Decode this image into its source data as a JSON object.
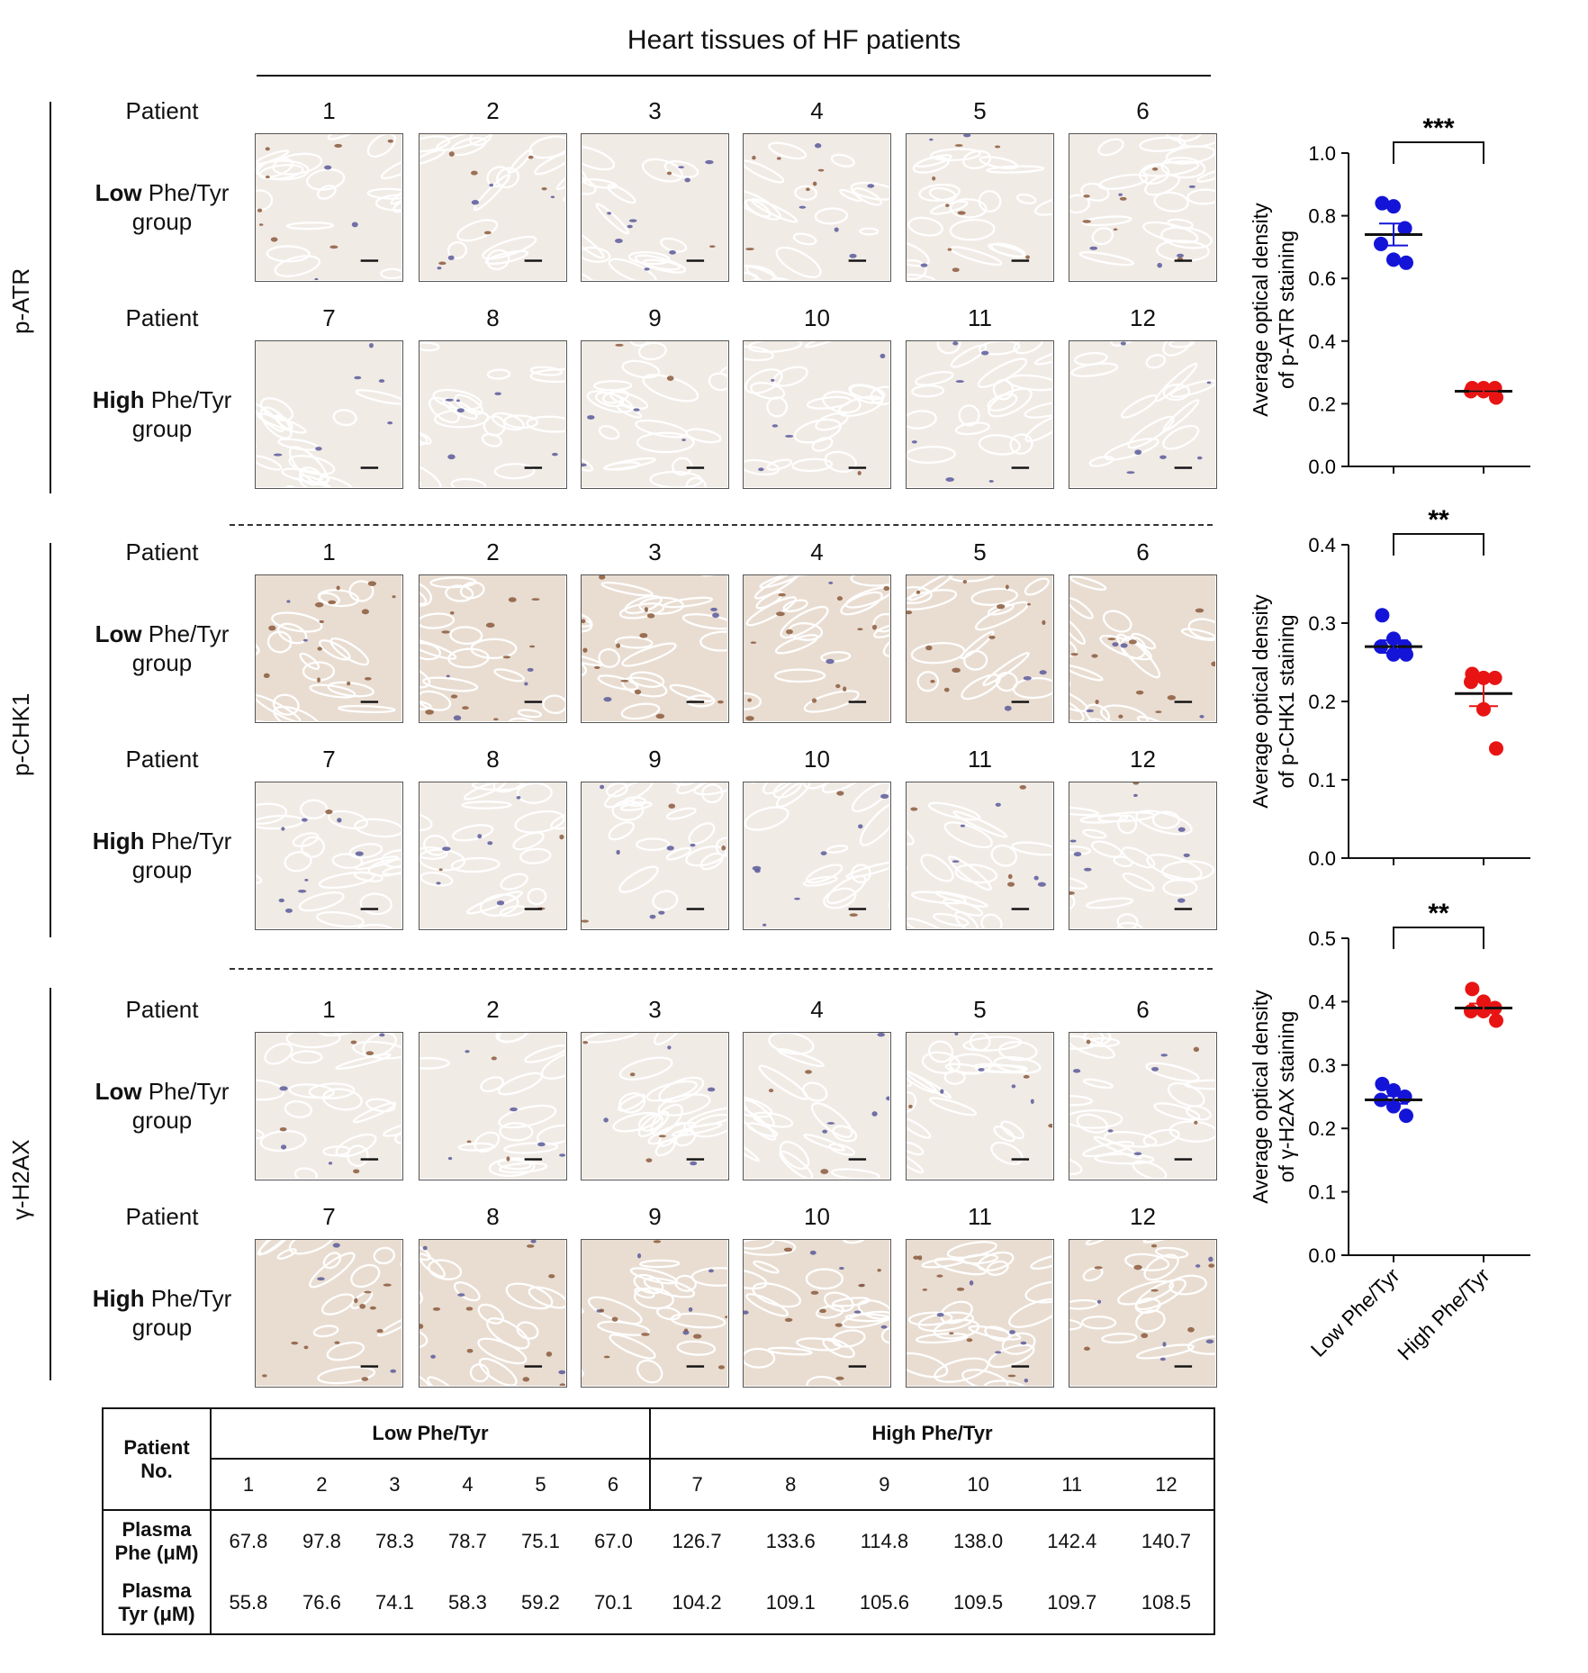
{
  "figure_title": "Heart tissues of HF patients",
  "labels": {
    "patient": "Patient",
    "low_bold": "Low",
    "high_bold": "High",
    "phe_tyr": " Phe/Tyr",
    "group": "group"
  },
  "panels": [
    {
      "name": "p-ATR",
      "low_patients": [
        "1",
        "2",
        "3",
        "4",
        "5",
        "6"
      ],
      "high_patients": [
        "7",
        "8",
        "9",
        "10",
        "11",
        "12"
      ]
    },
    {
      "name": "p-CHK1",
      "low_patients": [
        "1",
        "2",
        "3",
        "4",
        "5",
        "6"
      ],
      "high_patients": [
        "7",
        "8",
        "9",
        "10",
        "11",
        "12"
      ]
    },
    {
      "name": "γ-H2AX",
      "low_patients": [
        "1",
        "2",
        "3",
        "4",
        "5",
        "6"
      ],
      "high_patients": [
        "7",
        "8",
        "9",
        "10",
        "11",
        "12"
      ]
    }
  ],
  "colors": {
    "low": "#1414d9",
    "high": "#e81414",
    "stain_brown": "#8b5a3c",
    "stain_blue": "#5a5a9a"
  },
  "chart_data": [
    {
      "type": "scatter",
      "ylabel": [
        "Average optical density",
        "of p-ATR staining"
      ],
      "ylim": [
        0,
        1.0
      ],
      "yticks": [
        "0.0",
        "0.2",
        "0.4",
        "0.6",
        "0.8",
        "1.0"
      ],
      "categories": [
        "Low Phe/Tyr",
        "High Phe/Tyr"
      ],
      "series": [
        {
          "category": "Low Phe/Tyr",
          "values": [
            0.84,
            0.83,
            0.76,
            0.71,
            0.66,
            0.65
          ],
          "mean": 0.74,
          "sem": 0.035
        },
        {
          "category": "High Phe/Tyr",
          "values": [
            0.25,
            0.25,
            0.25,
            0.24,
            0.24,
            0.22
          ],
          "mean": 0.24,
          "sem": 0.005
        }
      ],
      "significance": "***"
    },
    {
      "type": "scatter",
      "ylabel": [
        "Average optical density",
        "of p-CHK1 staining"
      ],
      "ylim": [
        0,
        0.4
      ],
      "yticks": [
        "0.0",
        "0.1",
        "0.2",
        "0.3",
        "0.4"
      ],
      "categories": [
        "Low Phe/Tyr",
        "High Phe/Tyr"
      ],
      "series": [
        {
          "category": "Low Phe/Tyr",
          "values": [
            0.31,
            0.28,
            0.27,
            0.27,
            0.26,
            0.26
          ],
          "mean": 0.27,
          "sem": 0.008
        },
        {
          "category": "High Phe/Tyr",
          "values": [
            0.235,
            0.23,
            0.23,
            0.225,
            0.19,
            0.14
          ],
          "mean": 0.21,
          "sem": 0.016
        }
      ],
      "significance": "**"
    },
    {
      "type": "scatter",
      "ylabel": [
        "Average optical density",
        "of γ-H2AX staining"
      ],
      "ylim": [
        0,
        0.5
      ],
      "yticks": [
        "0.0",
        "0.1",
        "0.2",
        "0.3",
        "0.4",
        "0.5"
      ],
      "categories": [
        "Low Phe/Tyr",
        "High Phe/Tyr"
      ],
      "series": [
        {
          "category": "Low Phe/Tyr",
          "values": [
            0.27,
            0.26,
            0.25,
            0.245,
            0.235,
            0.22
          ],
          "mean": 0.245,
          "sem": 0.006
        },
        {
          "category": "High Phe/Tyr",
          "values": [
            0.42,
            0.4,
            0.39,
            0.385,
            0.385,
            0.37
          ],
          "mean": 0.39,
          "sem": 0.007
        }
      ],
      "significance": "**"
    }
  ],
  "table": {
    "patient_no": [
      "Patient",
      "No."
    ],
    "group_low": "Low Phe/Tyr",
    "group_high": "High Phe/Tyr",
    "patients": [
      "1",
      "2",
      "3",
      "4",
      "5",
      "6",
      "7",
      "8",
      "9",
      "10",
      "11",
      "12"
    ],
    "rows": [
      {
        "label": [
          "Plasma",
          "Phe (μM)"
        ],
        "values": [
          "67.8",
          "97.8",
          "78.3",
          "78.7",
          "75.1",
          "67.0",
          "126.7",
          "133.6",
          "114.8",
          "138.0",
          "142.4",
          "140.7"
        ]
      },
      {
        "label": [
          "Plasma",
          "Tyr (μM)"
        ],
        "values": [
          "55.8",
          "76.6",
          "74.1",
          "58.3",
          "59.2",
          "70.1",
          "104.2",
          "109.1",
          "105.6",
          "109.5",
          "109.7",
          "108.5"
        ]
      }
    ]
  }
}
